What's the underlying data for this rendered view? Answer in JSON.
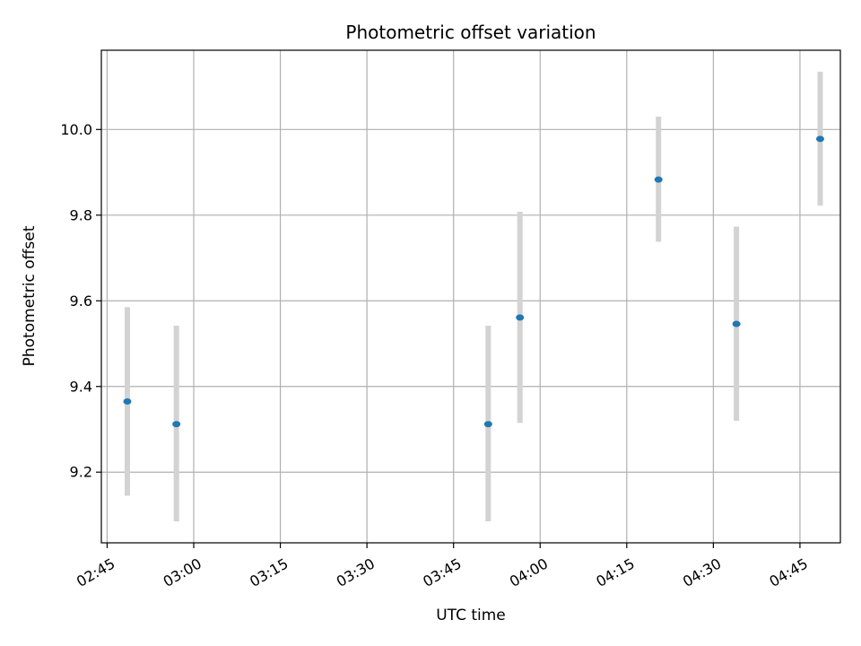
{
  "chart_data": {
    "type": "scatter",
    "title": "Photometric offset variation",
    "xlabel": "UTC time",
    "ylabel": "Photometric offset",
    "x_unit": "UTC hh:mm",
    "xlim": [
      "02:44",
      "04:52"
    ],
    "ylim": [
      9.035,
      10.185
    ],
    "x_ticks": [
      "02:45",
      "03:00",
      "03:15",
      "03:30",
      "03:45",
      "04:00",
      "04:15",
      "04:30",
      "04:45"
    ],
    "y_ticks": [
      9.2,
      9.4,
      9.6,
      9.8,
      10.0
    ],
    "y_tick_labels": [
      "9.2",
      "9.4",
      "9.6",
      "9.8",
      "10.0"
    ],
    "grid": true,
    "point_color": "#1f77b4",
    "errorbar_color": "#d3d3d3",
    "points": [
      {
        "x": "02:48:30",
        "y": 9.365,
        "ylow": 9.145,
        "yhigh": 9.585
      },
      {
        "x": "02:57:00",
        "y": 9.312,
        "ylow": 9.085,
        "yhigh": 9.542
      },
      {
        "x": "03:51:00",
        "y": 9.312,
        "ylow": 9.085,
        "yhigh": 9.542
      },
      {
        "x": "03:56:30",
        "y": 9.561,
        "ylow": 9.315,
        "yhigh": 9.808
      },
      {
        "x": "04:20:30",
        "y": 9.883,
        "ylow": 9.738,
        "yhigh": 10.03
      },
      {
        "x": "04:34:00",
        "y": 9.546,
        "ylow": 9.32,
        "yhigh": 9.773
      },
      {
        "x": "04:48:30",
        "y": 9.978,
        "ylow": 9.822,
        "yhigh": 10.135
      }
    ]
  }
}
